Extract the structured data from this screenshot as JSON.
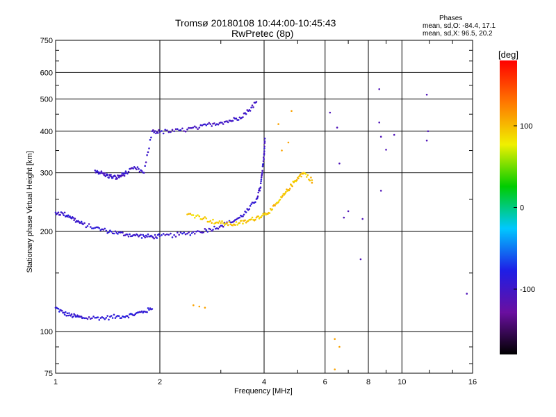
{
  "chart_data": {
    "type": "scatter",
    "title": "Tromsø 20180108 10:44:00-10:45:43",
    "subtitle": "RwPretec (8p)",
    "xlabel": "Frequency [MHz]",
    "ylabel": "Stationary phase Virtual Height [km]",
    "x_scale": "log",
    "y_scale": "log",
    "xlim": [
      1,
      16
    ],
    "ylim": [
      75,
      750
    ],
    "x_ticks": [
      1,
      2,
      4,
      6,
      8,
      10,
      16
    ],
    "x_tick_labels": [
      "1",
      "2",
      "4",
      "6",
      "8",
      "10",
      "16"
    ],
    "x_gridlines": [
      2,
      4,
      6,
      8,
      10
    ],
    "y_ticks": [
      75,
      100,
      200,
      300,
      400,
      500,
      600,
      750
    ],
    "y_tick_labels": [
      "75",
      "100",
      "200",
      "300",
      "400",
      "500",
      "600",
      "750"
    ],
    "y_gridlines": [
      100,
      200,
      300,
      400,
      500,
      600
    ],
    "grid": true,
    "stats": {
      "heading": "Phases",
      "o_mode": "mean, sd,O: -84.4, 17.1",
      "x_mode": "mean, sd,X:  96.5, 20.2"
    },
    "colorbar": {
      "label": "[deg]",
      "range": [
        -180,
        180
      ],
      "ticks": [
        100,
        0,
        -100
      ],
      "tick_labels": [
        "100",
        "0",
        "-100"
      ],
      "colormap": [
        "#000000",
        "#6a0fa0",
        "#1e1ee6",
        "#00c8ff",
        "#00cc00",
        "#f0f000",
        "#ff7800",
        "#ff0000"
      ]
    },
    "series": [
      {
        "trace": "lower",
        "color_phase": -90,
        "points": [
          [
            1.0,
            118
          ],
          [
            1.05,
            114
          ],
          [
            1.1,
            112
          ],
          [
            1.15,
            111
          ],
          [
            1.2,
            110
          ],
          [
            1.3,
            110
          ],
          [
            1.4,
            110
          ],
          [
            1.5,
            111
          ],
          [
            1.6,
            111.5
          ],
          [
            1.7,
            113
          ],
          [
            1.8,
            115
          ],
          [
            1.9,
            117
          ]
        ]
      },
      {
        "trace": "main",
        "color_phase": -95,
        "points": [
          [
            1.0,
            228
          ],
          [
            1.05,
            226
          ],
          [
            1.1,
            222
          ],
          [
            1.15,
            215
          ],
          [
            1.2,
            210
          ],
          [
            1.3,
            205
          ],
          [
            1.4,
            201
          ],
          [
            1.5,
            198
          ],
          [
            1.6,
            196
          ],
          [
            1.7,
            194.5
          ],
          [
            1.8,
            193.5
          ],
          [
            1.9,
            193
          ],
          [
            2.0,
            193.5
          ],
          [
            2.2,
            195
          ],
          [
            2.4,
            197
          ],
          [
            2.6,
            200
          ],
          [
            2.8,
            203
          ],
          [
            3.0,
            208
          ],
          [
            3.2,
            213
          ],
          [
            3.4,
            220
          ],
          [
            3.6,
            232
          ],
          [
            3.8,
            250
          ],
          [
            3.9,
            270
          ],
          [
            3.95,
            300
          ],
          [
            4.0,
            340
          ],
          [
            4.02,
            380
          ]
        ]
      },
      {
        "trace": "upper",
        "color_phase": -100,
        "points": [
          [
            1.3,
            305
          ],
          [
            1.35,
            300
          ],
          [
            1.4,
            295
          ],
          [
            1.45,
            292
          ],
          [
            1.5,
            290
          ],
          [
            1.55,
            295
          ],
          [
            1.6,
            300
          ],
          [
            1.7,
            310
          ],
          [
            1.8,
            300
          ],
          [
            1.9,
            400
          ],
          [
            2.0,
            398
          ],
          [
            2.2,
            400
          ],
          [
            2.4,
            405
          ],
          [
            2.6,
            410
          ],
          [
            2.8,
            420
          ],
          [
            3.0,
            425
          ],
          [
            3.2,
            430
          ],
          [
            3.4,
            440
          ],
          [
            3.6,
            460
          ],
          [
            3.8,
            490
          ]
        ]
      },
      {
        "trace": "extraordinary",
        "color_phase": 95,
        "points": [
          [
            2.4,
            225
          ],
          [
            2.6,
            222
          ],
          [
            2.8,
            215
          ],
          [
            3.0,
            212
          ],
          [
            3.2,
            210
          ],
          [
            3.4,
            212
          ],
          [
            3.6,
            215
          ],
          [
            3.8,
            220
          ],
          [
            4.0,
            225
          ],
          [
            4.2,
            232
          ],
          [
            4.4,
            245
          ],
          [
            4.6,
            260
          ],
          [
            4.8,
            275
          ],
          [
            5.0,
            290
          ],
          [
            5.2,
            300
          ],
          [
            5.5,
            285
          ]
        ]
      },
      {
        "trace": "scattered",
        "color_phase": 110,
        "points": [
          [
            2.5,
            120
          ],
          [
            2.6,
            119
          ],
          [
            2.7,
            118
          ],
          [
            4.5,
            350
          ],
          [
            4.7,
            370
          ],
          [
            4.4,
            420
          ],
          [
            4.8,
            460
          ],
          [
            5.5,
            280
          ],
          [
            6.4,
            95
          ],
          [
            6.4,
            77
          ],
          [
            6.6,
            90
          ]
        ]
      },
      {
        "trace": "high-frequency",
        "color_phase": -110,
        "points": [
          [
            6.2,
            455
          ],
          [
            6.5,
            410
          ],
          [
            6.6,
            320
          ],
          [
            7.0,
            230
          ],
          [
            7.6,
            165
          ],
          [
            8.6,
            535
          ],
          [
            8.6,
            425
          ],
          [
            8.7,
            385
          ],
          [
            8.7,
            265
          ],
          [
            9.5,
            390
          ],
          [
            11.8,
            515
          ],
          [
            11.9,
            400
          ],
          [
            11.8,
            375
          ],
          [
            15.4,
            130
          ],
          [
            6.8,
            220
          ],
          [
            7.7,
            218
          ],
          [
            9.0,
            352
          ]
        ]
      }
    ]
  }
}
